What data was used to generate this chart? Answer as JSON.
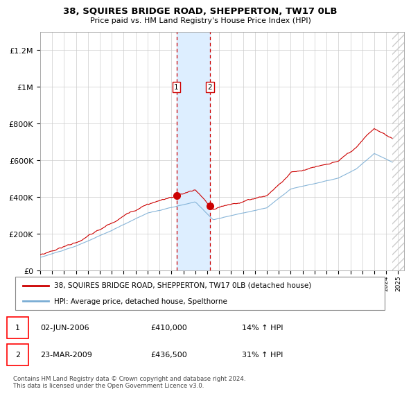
{
  "title": "38, SQUIRES BRIDGE ROAD, SHEPPERTON, TW17 0LB",
  "subtitle": "Price paid vs. HM Land Registry's House Price Index (HPI)",
  "legend_line1": "38, SQUIRES BRIDGE ROAD, SHEPPERTON, TW17 0LB (detached house)",
  "legend_line2": "HPI: Average price, detached house, Spelthorne",
  "footnote": "Contains HM Land Registry data © Crown copyright and database right 2024.\nThis data is licensed under the Open Government Licence v3.0.",
  "transaction1_date": "02-JUN-2006",
  "transaction1_price": "£410,000",
  "transaction1_hpi": "14% ↑ HPI",
  "transaction2_date": "23-MAR-2009",
  "transaction2_price": "£436,500",
  "transaction2_hpi": "31% ↑ HPI",
  "price_line_color": "#cc0000",
  "hpi_line_color": "#7aadd4",
  "transaction1_x": 2006.42,
  "transaction2_x": 2009.23,
  "ylim_min": 0,
  "ylim_max": 1300000,
  "xlim_min": 1995.0,
  "xlim_max": 2025.5,
  "data_end_x": 2024.5,
  "shade_color": "#ddeeff",
  "dashed_color": "#cc0000",
  "background_color": "#ffffff",
  "grid_color": "#cccccc",
  "hatch_color": "#bbbbbb"
}
